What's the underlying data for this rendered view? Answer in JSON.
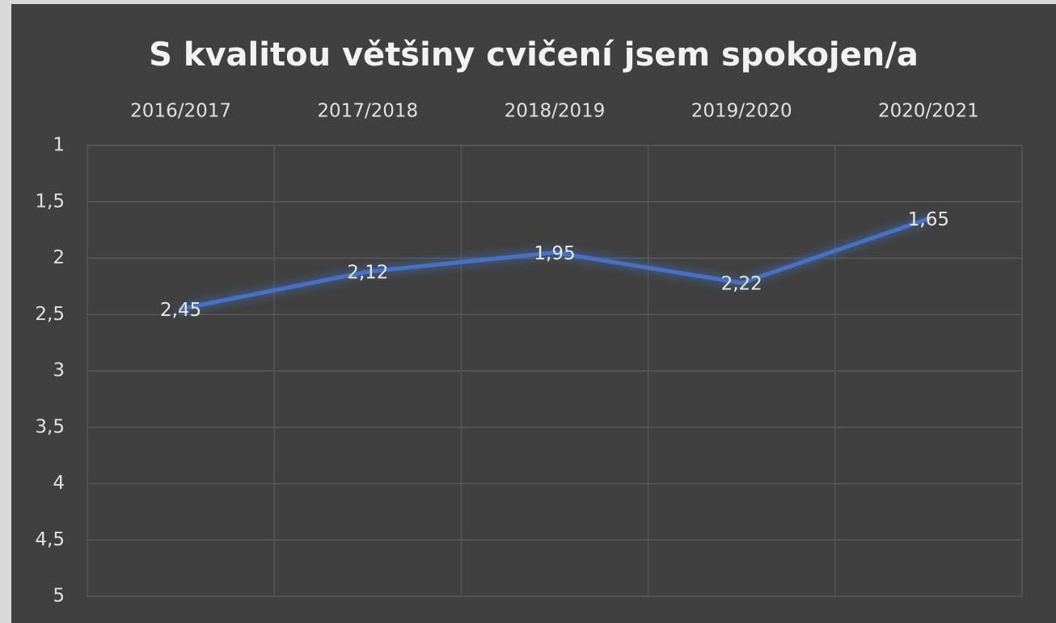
{
  "chart_data": {
    "type": "line",
    "title": "S kvalitou většiny cvičení jsem spokojen/a",
    "categories": [
      "2016/2017",
      "2017/2018",
      "2018/2019",
      "2019/2020",
      "2020/2021"
    ],
    "values": [
      2.45,
      2.12,
      1.95,
      2.22,
      1.65
    ],
    "value_labels": [
      "2,45",
      "2,12",
      "1,95",
      "2,22",
      "1,65"
    ],
    "color": "#4472c4",
    "ylim": [
      1,
      5
    ],
    "y_inverted": true,
    "yticks": [
      1,
      {
        "value": 1.5,
        "label": "1,5"
      },
      2,
      {
        "value": 2.5,
        "label": "2,5"
      },
      3,
      {
        "value": 3.5,
        "label": "3,5"
      },
      4,
      {
        "value": 4.5,
        "label": "4,5"
      },
      5
    ],
    "grid": true
  }
}
